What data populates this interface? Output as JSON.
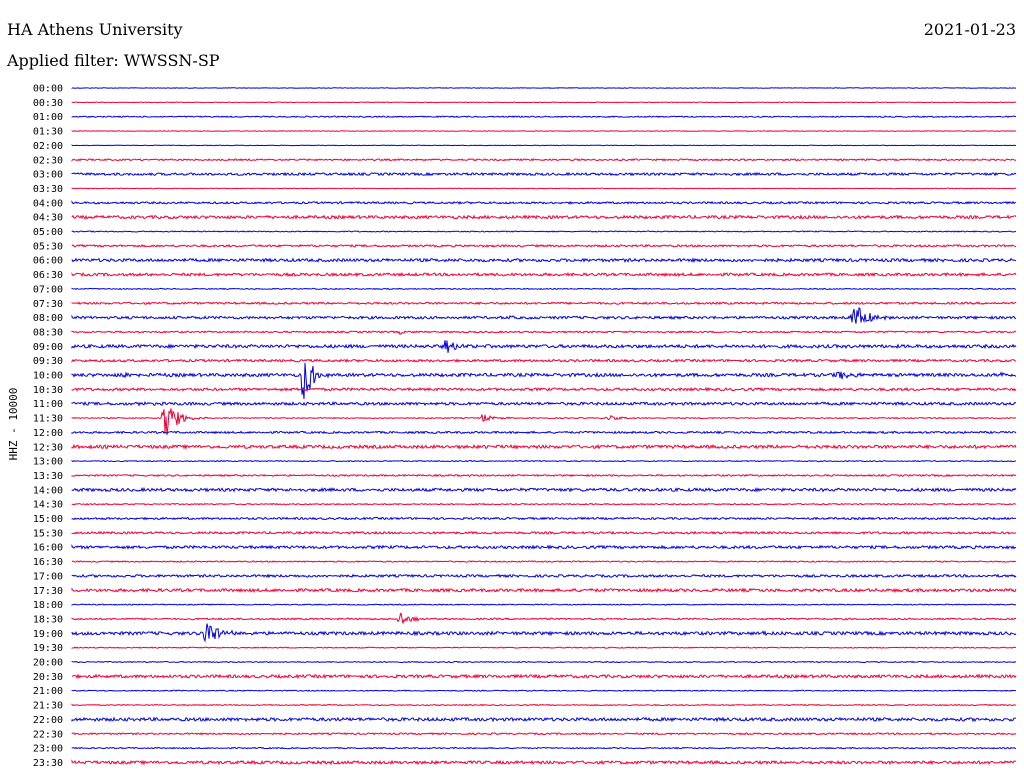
{
  "header": {
    "station": "HA Athens University",
    "date": "2021-01-23",
    "filter": "Applied filter: WWSSN-SP"
  },
  "chart_data": {
    "type": "line",
    "ylabel": "HHZ - 10000",
    "colors": {
      "odd_trace": "#0000dd",
      "even_trace": "#ee0033"
    },
    "row_labels": [
      "00:00",
      "00:30",
      "01:00",
      "01:30",
      "02:00",
      "02:30",
      "03:00",
      "03:30",
      "04:00",
      "04:30",
      "05:00",
      "05:30",
      "06:00",
      "06:30",
      "07:00",
      "07:30",
      "08:00",
      "08:30",
      "09:00",
      "09:30",
      "10:00",
      "10:30",
      "11:00",
      "11:30",
      "12:00",
      "12:30",
      "13:00",
      "13:30",
      "14:00",
      "14:30",
      "15:00",
      "15:30",
      "16:00",
      "16:30",
      "17:00",
      "17:30",
      "18:00",
      "18:30",
      "19:00",
      "19:30",
      "20:00",
      "20:30",
      "21:00",
      "21:30",
      "22:00",
      "22:30",
      "23:00",
      "23:30"
    ],
    "noise_level": [
      0.3,
      0.3,
      0.6,
      0.3,
      0.3,
      0.8,
      1.2,
      0.3,
      1.0,
      1.5,
      0.5,
      1.0,
      1.5,
      1.4,
      0.5,
      1.0,
      1.3,
      0.8,
      1.6,
      1.2,
      1.6,
      1.3,
      1.4,
      0.5,
      1.0,
      1.6,
      0.5,
      0.8,
      1.5,
      0.6,
      1.0,
      1.1,
      1.4,
      0.6,
      1.2,
      1.5,
      0.5,
      0.8,
      1.6,
      0.5,
      0.5,
      1.5,
      0.5,
      0.5,
      1.6,
      0.8,
      0.6,
      1.5
    ],
    "events": [
      {
        "row": 16,
        "minute": 13.9,
        "amp": 1.5
      },
      {
        "row": 16,
        "minute": 24.8,
        "amp": 22
      },
      {
        "row": 17,
        "minute": 10.4,
        "amp": 2
      },
      {
        "row": 18,
        "minute": 11.8,
        "amp": 9
      },
      {
        "row": 20,
        "minute": 1.5,
        "amp": 2
      },
      {
        "row": 20,
        "minute": 7.3,
        "amp": 32
      },
      {
        "row": 20,
        "minute": 24.3,
        "amp": 6
      },
      {
        "row": 20,
        "minute": 29.5,
        "amp": 4
      },
      {
        "row": 22,
        "minute": 2.1,
        "amp": 2
      },
      {
        "row": 23,
        "minute": 2.9,
        "amp": 30
      },
      {
        "row": 23,
        "minute": 13.0,
        "amp": 5
      },
      {
        "row": 23,
        "minute": 17.0,
        "amp": 3
      },
      {
        "row": 25,
        "minute": 13.1,
        "amp": 2
      },
      {
        "row": 37,
        "minute": 10.4,
        "amp": 9
      },
      {
        "row": 38,
        "minute": 4.2,
        "amp": 22
      },
      {
        "row": 38,
        "minute": 21.9,
        "amp": 2
      }
    ]
  }
}
